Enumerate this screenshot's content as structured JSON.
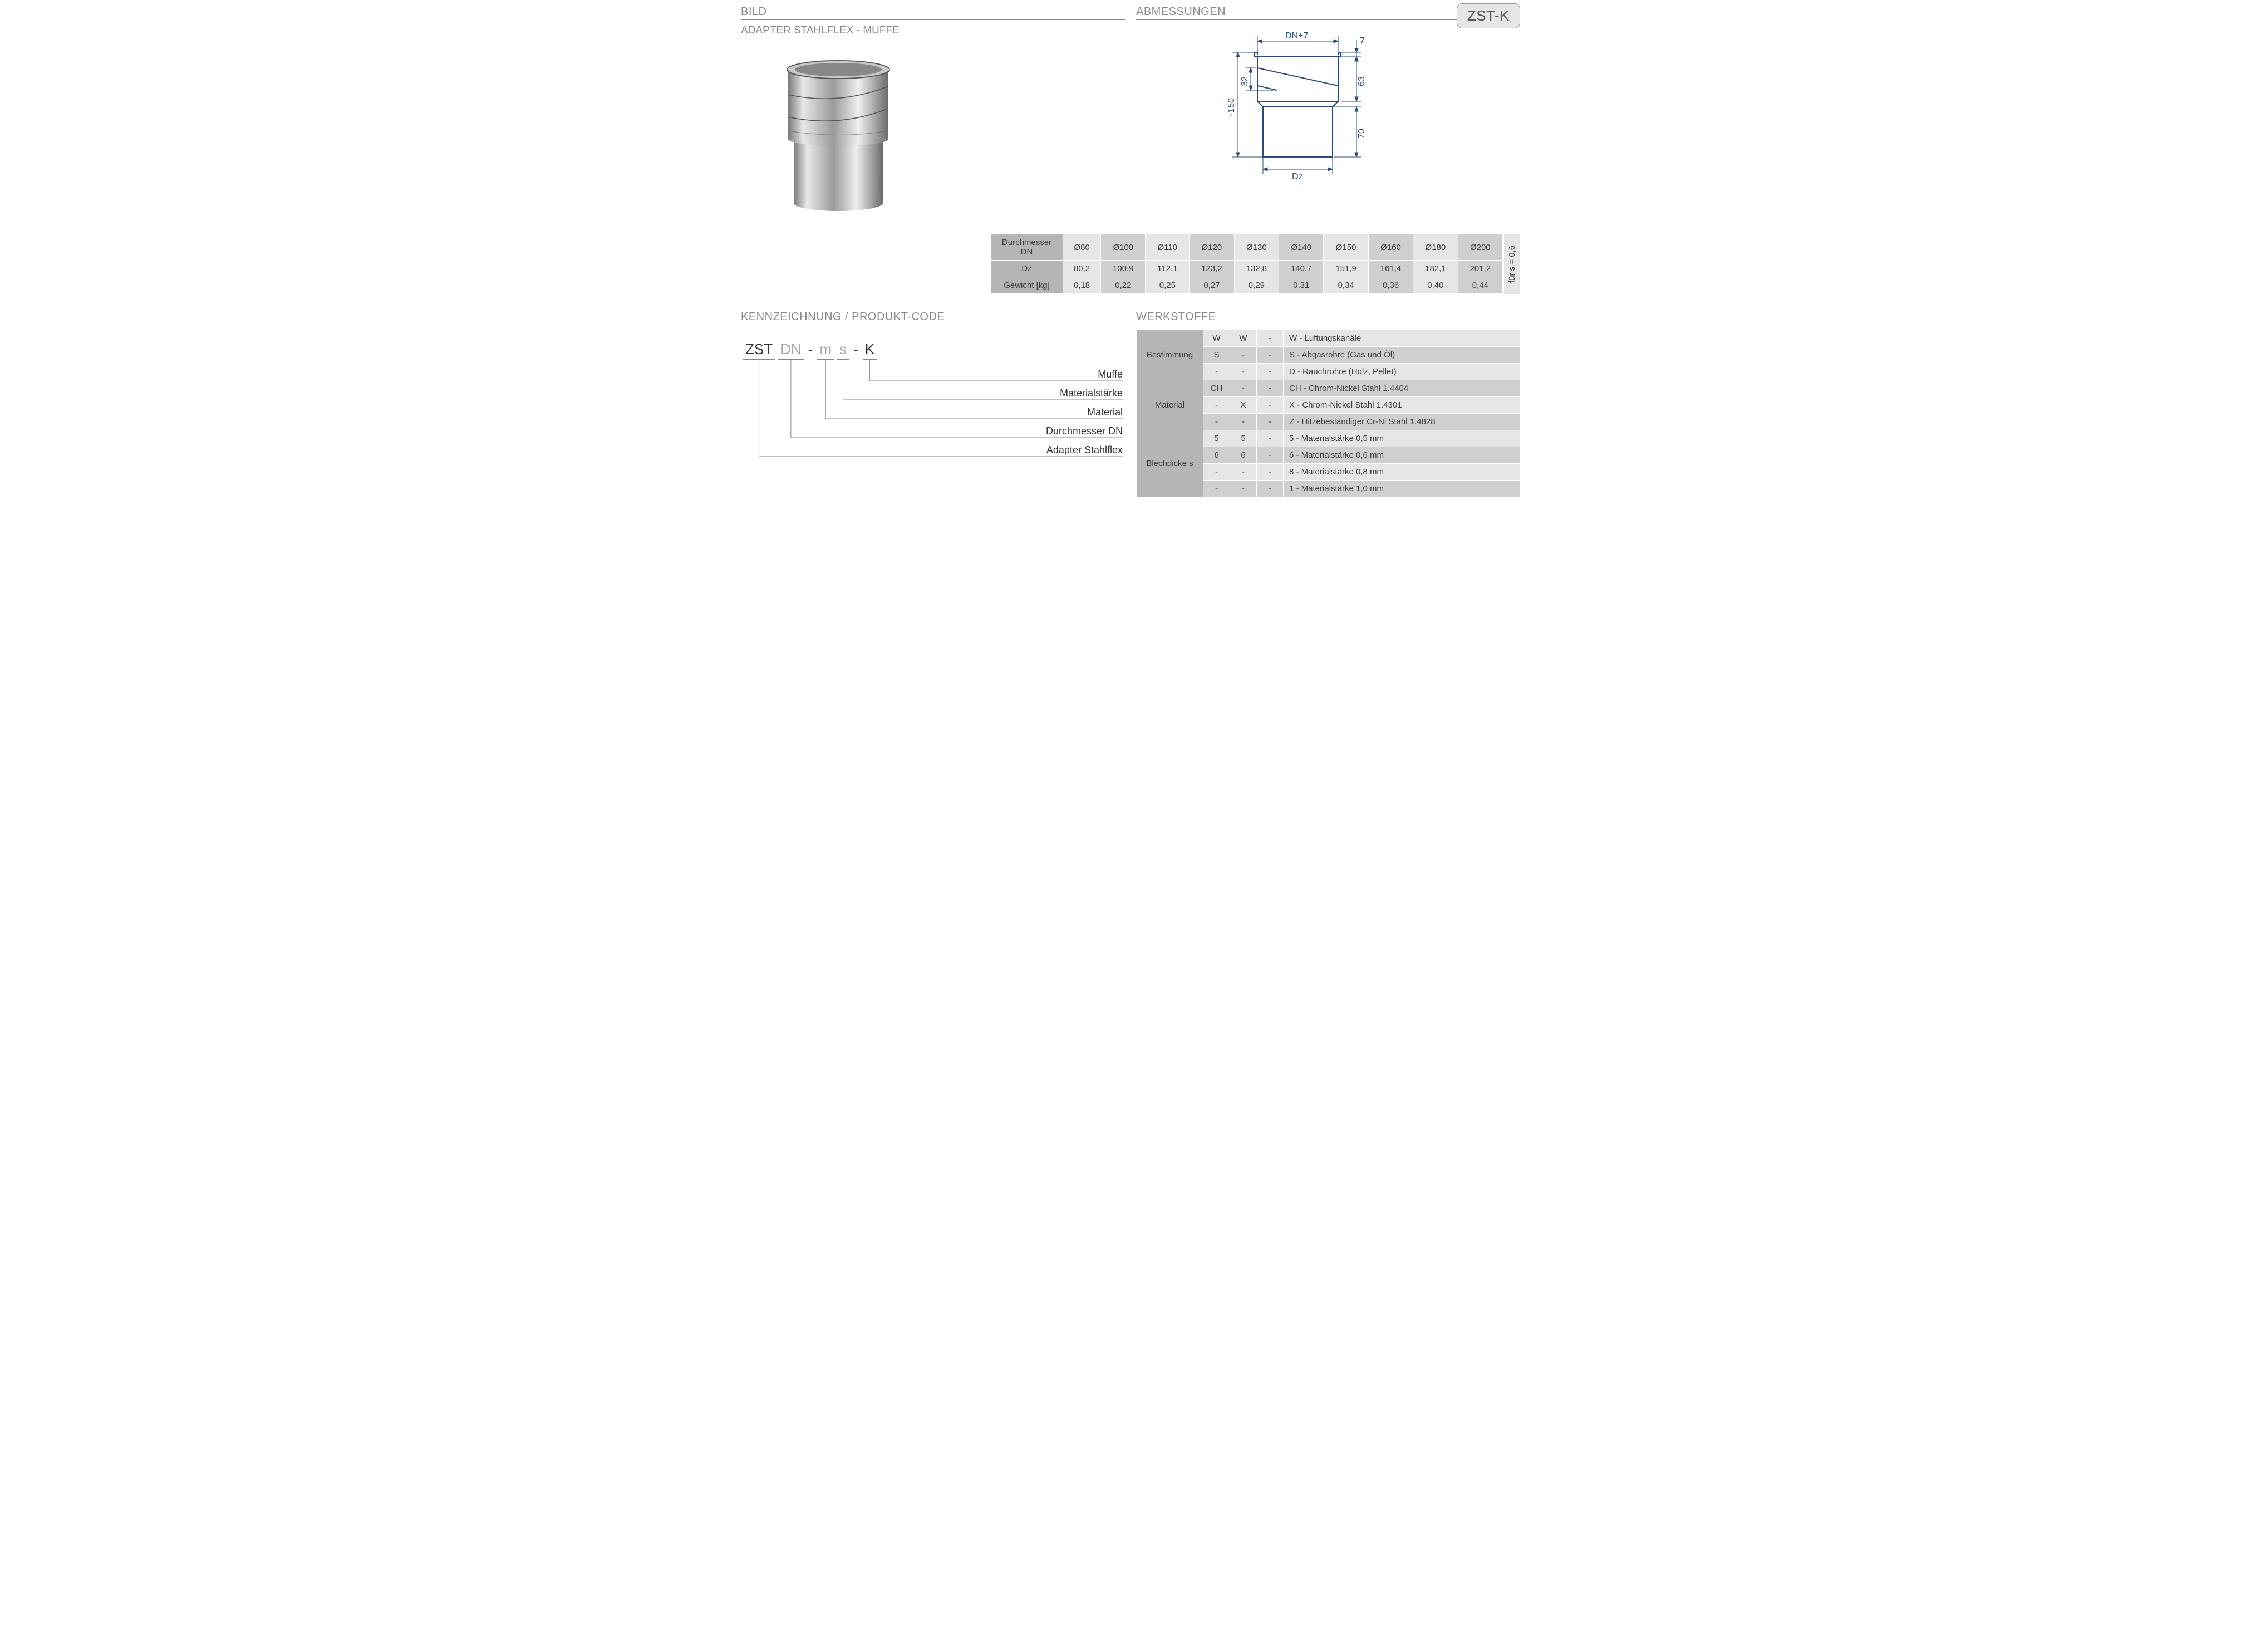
{
  "headers": {
    "bild": "BILD",
    "abmessungen": "ABMESSUNGEN",
    "kennzeichnung": "KENNZEICHNUNG  / PRODUKT-CODE",
    "werkstoffe": "WERKSTOFFE",
    "subtitle": "ADAPTER STAHLFLEX - MUFFE",
    "badge": "ZST-K"
  },
  "diagram": {
    "dn_plus_7": "DN+7",
    "dz": "Dz",
    "h_total": "~150",
    "h_32": "32",
    "h_7": "7",
    "h_63": "63",
    "h_70": "70"
  },
  "dim_table": {
    "row_labels": [
      "Durchmesser DN",
      "Dz",
      "Gewicht [kg]"
    ],
    "columns": [
      "Ø80",
      "Ø100",
      "Ø110",
      "Ø120",
      "Ø130",
      "Ø140",
      "Ø150",
      "Ø160",
      "Ø180",
      "Ø200"
    ],
    "rows": [
      [
        "80,2",
        "100,9",
        "112,1",
        "123,2",
        "132,8",
        "140,7",
        "151,9",
        "161,4",
        "182,1",
        "201,2"
      ],
      [
        "0,18",
        "0,22",
        "0,25",
        "0,27",
        "0,29",
        "0,31",
        "0,34",
        "0,36",
        "0,40",
        "0,44"
      ]
    ],
    "side_note": "für s = 0,6",
    "shade_light": "#e6e6e6",
    "shade_dark": "#cfcfcf"
  },
  "code": {
    "segments": [
      {
        "text": "ZST",
        "grey": false
      },
      {
        "text": "DN",
        "grey": true
      },
      {
        "text": "m",
        "grey": true
      },
      {
        "text": "s",
        "grey": true
      },
      {
        "text": "K",
        "grey": false
      }
    ],
    "separators": [
      "",
      "",
      "-",
      "",
      "-"
    ],
    "legend": [
      "Muffe",
      "Materialstärke",
      "Material",
      "Durchmesser DN",
      "Adapter Stahlflex"
    ]
  },
  "materials": {
    "groups": [
      {
        "label": "Bestimmung",
        "rows": [
          {
            "c": [
              "W",
              "W",
              "-"
            ],
            "desc": "W - Luftungskanäle"
          },
          {
            "c": [
              "S",
              "-",
              "-"
            ],
            "desc": "S - Abgasrohre (Gas und Öl)"
          },
          {
            "c": [
              "-",
              "-",
              "-"
            ],
            "desc": "D - Rauchrohre (Holz, Pellet)"
          }
        ]
      },
      {
        "label": "Material",
        "rows": [
          {
            "c": [
              "CH",
              "-",
              "-"
            ],
            "desc": "CH - Chrom-Nickel Stahl 1.4404"
          },
          {
            "c": [
              "-",
              "X",
              "-"
            ],
            "desc": "X - Chrom-Nickel Stahl 1.4301"
          },
          {
            "c": [
              "-",
              "-",
              "-"
            ],
            "desc": "Z - Hitzebeständiger Cr-Ni Stahl 1.4828"
          }
        ]
      },
      {
        "label": "Blechdicke s",
        "rows": [
          {
            "c": [
              "5",
              "5",
              "-"
            ],
            "desc": "5 - Materialstärke 0,5 mm"
          },
          {
            "c": [
              "6",
              "6",
              "-"
            ],
            "desc": "6 - Materialstärke 0,6 mm"
          },
          {
            "c": [
              "-",
              "-",
              "-"
            ],
            "desc": "8 - Materialstärke 0,8 mm"
          },
          {
            "c": [
              "-",
              "-",
              "-"
            ],
            "desc": "1 - Materialstärke 1,0 mm"
          }
        ]
      }
    ],
    "shade_light": "#e6e6e6",
    "shade_dark": "#cfcfcf"
  }
}
